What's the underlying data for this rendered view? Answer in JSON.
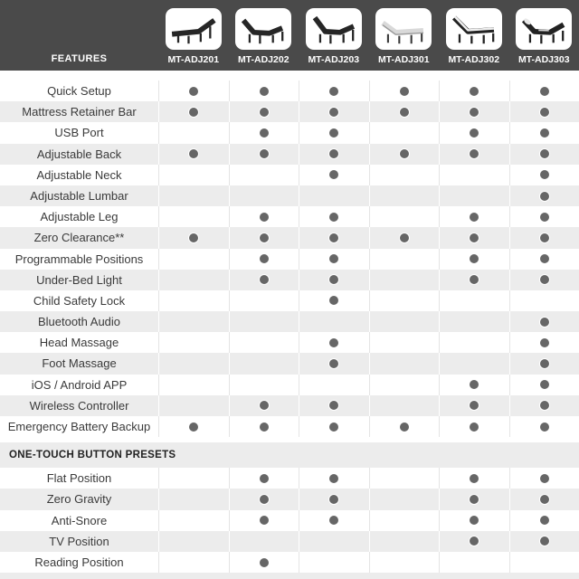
{
  "header": {
    "features_label": "FEATURES",
    "products": [
      {
        "model": "MT-ADJ201",
        "icon": "bed-flat-dark"
      },
      {
        "model": "MT-ADJ202",
        "icon": "bed-head-foot-raised-dark"
      },
      {
        "model": "MT-ADJ203",
        "icon": "bed-head-foot-raised-dark"
      },
      {
        "model": "MT-ADJ301",
        "icon": "bed-head-raised-light"
      },
      {
        "model": "MT-ADJ302",
        "icon": "bed-head-raised-white-top"
      },
      {
        "model": "MT-ADJ303",
        "icon": "bed-head-foot-raised-mixed"
      }
    ]
  },
  "sections": [
    {
      "title": null,
      "rows": [
        {
          "label": "Quick Setup",
          "dots": [
            1,
            1,
            1,
            1,
            1,
            1
          ]
        },
        {
          "label": "Mattress Retainer Bar",
          "dots": [
            1,
            1,
            1,
            1,
            1,
            1
          ]
        },
        {
          "label": "USB Port",
          "dots": [
            0,
            1,
            1,
            0,
            1,
            1
          ]
        },
        {
          "label": "Adjustable Back",
          "dots": [
            1,
            1,
            1,
            1,
            1,
            1
          ]
        },
        {
          "label": "Adjustable Neck",
          "dots": [
            0,
            0,
            1,
            0,
            0,
            1
          ]
        },
        {
          "label": "Adjustable Lumbar",
          "dots": [
            0,
            0,
            0,
            0,
            0,
            1
          ]
        },
        {
          "label": "Adjustable Leg",
          "dots": [
            0,
            1,
            1,
            0,
            1,
            1
          ]
        },
        {
          "label": "Zero Clearance**",
          "dots": [
            1,
            1,
            1,
            1,
            1,
            1
          ]
        },
        {
          "label": "Programmable Positions",
          "dots": [
            0,
            1,
            1,
            0,
            1,
            1
          ]
        },
        {
          "label": "Under-Bed Light",
          "dots": [
            0,
            1,
            1,
            0,
            1,
            1
          ]
        },
        {
          "label": "Child Safety Lock",
          "dots": [
            0,
            0,
            1,
            0,
            0,
            0
          ]
        },
        {
          "label": "Bluetooth Audio",
          "dots": [
            0,
            0,
            0,
            0,
            0,
            1
          ]
        },
        {
          "label": "Head Massage",
          "dots": [
            0,
            0,
            1,
            0,
            0,
            1
          ]
        },
        {
          "label": "Foot Massage",
          "dots": [
            0,
            0,
            1,
            0,
            0,
            1
          ]
        },
        {
          "label": "iOS / Android APP",
          "dots": [
            0,
            0,
            0,
            0,
            1,
            1
          ]
        },
        {
          "label": "Wireless Controller",
          "dots": [
            0,
            1,
            1,
            0,
            1,
            1
          ]
        },
        {
          "label": "Emergency Battery Backup",
          "dots": [
            1,
            1,
            1,
            1,
            1,
            1
          ]
        }
      ]
    },
    {
      "title": "ONE-TOUCH BUTTON PRESETS",
      "rows": [
        {
          "label": "Flat Position",
          "dots": [
            0,
            1,
            1,
            0,
            1,
            1
          ]
        },
        {
          "label": "Zero Gravity",
          "dots": [
            0,
            1,
            1,
            0,
            1,
            1
          ]
        },
        {
          "label": "Anti-Snore",
          "dots": [
            0,
            1,
            1,
            0,
            1,
            1
          ]
        },
        {
          "label": "TV Position",
          "dots": [
            0,
            0,
            0,
            0,
            1,
            1
          ]
        },
        {
          "label": "Reading Position",
          "dots": [
            0,
            1,
            0,
            0,
            0,
            0
          ]
        }
      ]
    }
  ],
  "colors": {
    "header_bg": "#4a4a4a",
    "stripe": "#ececec",
    "dot": "#666666",
    "separator_on_white": "#e4e4e4",
    "separator_on_gray": "#ffffff"
  }
}
